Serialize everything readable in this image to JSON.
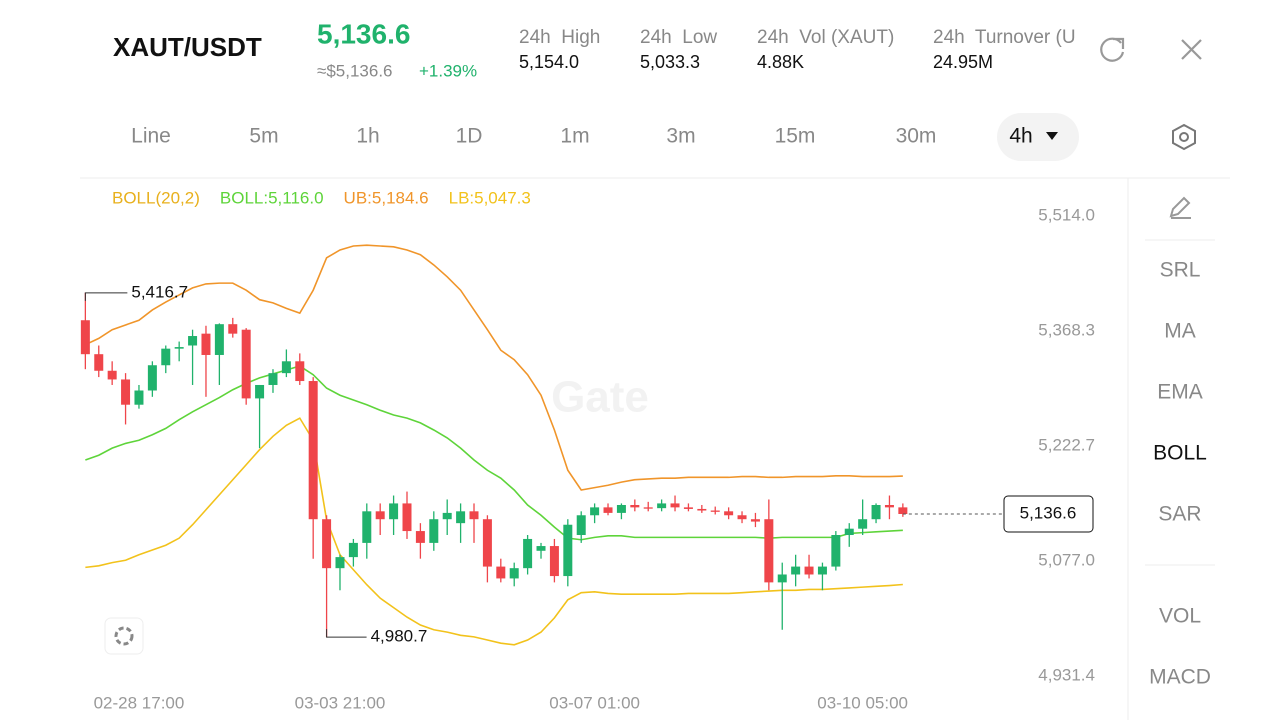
{
  "header": {
    "pair": "XAUT/USDT",
    "price": "5,136.6",
    "price_approx": "≈$5,136.6",
    "change": "+1.39%",
    "stats": [
      {
        "label": "24h  High",
        "value": "5,154.0"
      },
      {
        "label": "24h  Low",
        "value": "5,033.3"
      },
      {
        "label": "24h  Vol (XAUT)",
        "value": "4.88K"
      },
      {
        "label": "24h  Turnover (U",
        "value": "24.95M"
      }
    ]
  },
  "timeframes": [
    "Line",
    "5m",
    "1h",
    "1D",
    "1m",
    "3m",
    "15m",
    "30m",
    "4h"
  ],
  "active_timeframe": 8,
  "sidebar": [
    "SRL",
    "MA",
    "EMA",
    "BOLL",
    "SAR",
    "VOL",
    "MACD"
  ],
  "active_sidebar": 3,
  "watermark": "Gate",
  "chart_data": {
    "type": "candlestick",
    "indicator": "BOLL(20,2)",
    "indicator_color": "#e8b01c",
    "up_color": "#20b26c",
    "down_color": "#ef454a",
    "open": [
      5382,
      5339,
      5318,
      5307,
      5275,
      5293,
      5325,
      5346,
      5350,
      5365,
      5338,
      5377,
      5370,
      5283,
      5300,
      5315,
      5330,
      5305,
      5130,
      5068,
      5082,
      5100,
      5140,
      5130,
      5150,
      5115,
      5100,
      5130,
      5125,
      5140,
      5130,
      5070,
      5055,
      5068,
      5090,
      5096,
      5058,
      5110,
      5135,
      5145,
      5138,
      5148,
      5145,
      5144,
      5150,
      5145,
      5143,
      5141,
      5140,
      5135,
      5130,
      5130,
      5050,
      5060,
      5070,
      5060,
      5070,
      5110,
      5118,
      5130,
      5148,
      5145
    ],
    "high": [
      5417,
      5350,
      5330,
      5315,
      5300,
      5330,
      5350,
      5355,
      5370,
      5375,
      5378,
      5385,
      5372,
      5300,
      5320,
      5345,
      5340,
      5310,
      5135,
      5085,
      5105,
      5150,
      5150,
      5160,
      5165,
      5125,
      5140,
      5155,
      5150,
      5150,
      5135,
      5080,
      5075,
      5110,
      5100,
      5105,
      5130,
      5140,
      5150,
      5150,
      5150,
      5155,
      5152,
      5155,
      5160,
      5150,
      5148,
      5146,
      5145,
      5140,
      5138,
      5155,
      5075,
      5085,
      5085,
      5075,
      5115,
      5125,
      5155,
      5150,
      5160,
      5150
    ],
    "low": [
      5320,
      5310,
      5300,
      5250,
      5270,
      5285,
      5315,
      5330,
      5300,
      5285,
      5300,
      5360,
      5275,
      5220,
      5290,
      5310,
      5300,
      5080,
      4980.7,
      5040,
      5070,
      5080,
      5110,
      5110,
      5105,
      5080,
      5090,
      5110,
      5100,
      5100,
      5050,
      5050,
      5045,
      5060,
      5080,
      5050,
      5045,
      5100,
      5125,
      5135,
      5130,
      5140,
      5140,
      5140,
      5140,
      5140,
      5138,
      5136,
      5130,
      5125,
      5120,
      5040,
      4990,
      5045,
      5055,
      5040,
      5065,
      5095,
      5110,
      5125,
      5130,
      5133
    ],
    "close": [
      5339,
      5318,
      5307,
      5275,
      5293,
      5325,
      5346,
      5348,
      5362,
      5338,
      5377,
      5365,
      5283,
      5300,
      5315,
      5330,
      5305,
      5130,
      5068,
      5082,
      5100,
      5140,
      5130,
      5150,
      5115,
      5100,
      5130,
      5138,
      5140,
      5130,
      5070,
      5055,
      5068,
      5105,
      5096,
      5058,
      5123,
      5135,
      5145,
      5138,
      5148,
      5145,
      5144,
      5150,
      5145,
      5143,
      5141,
      5140,
      5135,
      5130,
      5127,
      5050,
      5060,
      5070,
      5060,
      5070,
      5110,
      5118,
      5130,
      5148,
      5145,
      5136.6
    ],
    "series": [
      {
        "name": "BOLL:5,116.0",
        "color": "#5ed43a",
        "values": [
          5205,
          5211,
          5220,
          5226,
          5230,
          5237,
          5245,
          5256,
          5266,
          5275,
          5284,
          5294,
          5302,
          5309,
          5314,
          5319,
          5324,
          5313,
          5296,
          5287,
          5281,
          5275,
          5268,
          5262,
          5258,
          5252,
          5243,
          5233,
          5220,
          5205,
          5192,
          5182,
          5167,
          5148,
          5135,
          5120,
          5106,
          5104,
          5107,
          5109,
          5109,
          5107,
          5107,
          5107,
          5107,
          5107,
          5107,
          5107,
          5107,
          5107,
          5107,
          5106,
          5107,
          5107,
          5107,
          5107,
          5107,
          5112,
          5113,
          5114,
          5115,
          5116.0
        ]
      },
      {
        "name": "UB:5,184.6",
        "color": "#f0952a",
        "values": [
          5351,
          5359,
          5370,
          5376,
          5382,
          5395,
          5405,
          5414,
          5423,
          5428,
          5429,
          5429,
          5420,
          5408,
          5404,
          5397,
          5391,
          5420,
          5461,
          5471,
          5476,
          5477,
          5476,
          5475,
          5471,
          5465,
          5452,
          5437,
          5420,
          5395,
          5370,
          5344,
          5332,
          5313,
          5287,
          5243,
          5192,
          5167,
          5170,
          5173,
          5177,
          5180,
          5181,
          5182,
          5182,
          5183,
          5183,
          5183,
          5183,
          5184,
          5184,
          5183,
          5183,
          5184,
          5184,
          5184,
          5185,
          5185,
          5184,
          5184,
          5184,
          5184.6
        ]
      },
      {
        "name": "LB:5,047.3",
        "color": "#f2c21b",
        "values": [
          5069,
          5071,
          5075,
          5078,
          5085,
          5091,
          5097,
          5106,
          5123,
          5142,
          5161,
          5180,
          5199,
          5218,
          5235,
          5249,
          5258,
          5230,
          5129,
          5085,
          5066,
          5047,
          5030,
          5018,
          5006,
          4996,
          4990,
          4987,
          4983,
          4981,
          4977,
          4973,
          4971,
          4977,
          4987,
          5005,
          5028,
          5037,
          5038,
          5036,
          5035,
          5035,
          5035,
          5035,
          5035,
          5036,
          5036,
          5036,
          5036,
          5037,
          5038,
          5039,
          5040,
          5040,
          5041,
          5041,
          5042,
          5043,
          5044,
          5045,
          5046,
          5047.3
        ]
      }
    ],
    "ylim": [
      4913.7,
      5559.6
    ],
    "yticks": [
      {
        "value": 5514,
        "label": "5,514.0"
      },
      {
        "value": 5368.3,
        "label": "5,368.3"
      },
      {
        "value": 5222.7,
        "label": "5,222.7"
      },
      {
        "value": 5077,
        "label": "5,077.0"
      },
      {
        "value": 4931.4,
        "label": "4,931.4"
      }
    ],
    "xlim": [
      -0.4,
      77.8
    ],
    "xticks": [
      {
        "value": 4,
        "label": "02-28 17:00"
      },
      {
        "value": 19,
        "label": "03-03 21:00"
      },
      {
        "value": 38,
        "label": "03-07 01:00"
      },
      {
        "value": 58,
        "label": "03-10 05:00"
      }
    ],
    "grid": false,
    "max_marker": {
      "index": 0,
      "value": 5416.7,
      "label": "5,416.7"
    },
    "min_marker": {
      "index": 18,
      "value": 4980.7,
      "label": "4,980.7"
    },
    "last_price": {
      "value": 5136.6,
      "label": "5,136.6"
    }
  }
}
